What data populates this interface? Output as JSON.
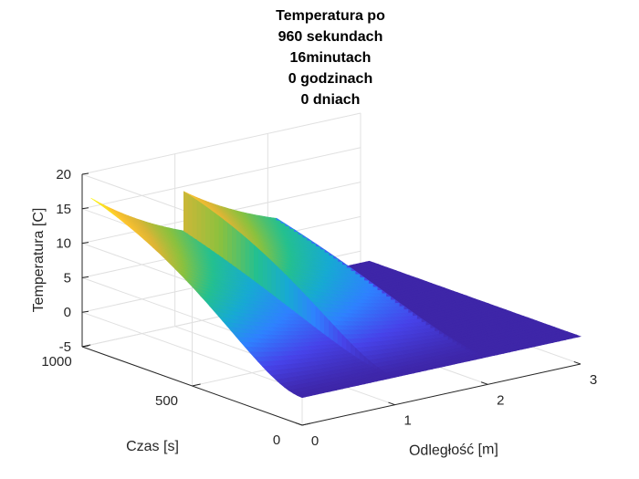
{
  "chart_data": {
    "type": "surface",
    "title_lines": [
      "Temperatura po",
      "960 sekundach",
      "16minutach",
      "0 godzinach",
      "0 dniach"
    ],
    "xlabel": "Odległość [m]",
    "ylabel": "Czas [s]",
    "zlabel": "Temperatura [C]",
    "xlim": [
      0,
      3
    ],
    "ylim": [
      0,
      1000
    ],
    "zlim": [
      -5,
      20
    ],
    "x_ticks": [
      "0",
      "1",
      "2",
      "3"
    ],
    "y_ticks": [
      "0",
      "500",
      "1000"
    ],
    "z_ticks": [
      "-5",
      "0",
      "5",
      "10",
      "15",
      "20"
    ],
    "grid": true,
    "colormap": "parula",
    "colormap_colors": [
      "#3e26a8",
      "#4743e9",
      "#2f81ff",
      "#17aad3",
      "#24c090",
      "#8bc13e",
      "#dcb536",
      "#fdc330",
      "#f9fb15"
    ],
    "regions": [
      {
        "x_from": 0.0,
        "x_to": 1.0,
        "temp_at_t0": -1,
        "temp_at_t960": 17
      },
      {
        "x_from": 1.0,
        "x_to": 2.0,
        "temp_at_t0": -1,
        "temp_at_t960": 15
      },
      {
        "x_from": 2.0,
        "x_to": 3.0,
        "temp_at_t0": -1,
        "temp_at_t960": -1
      }
    ]
  }
}
